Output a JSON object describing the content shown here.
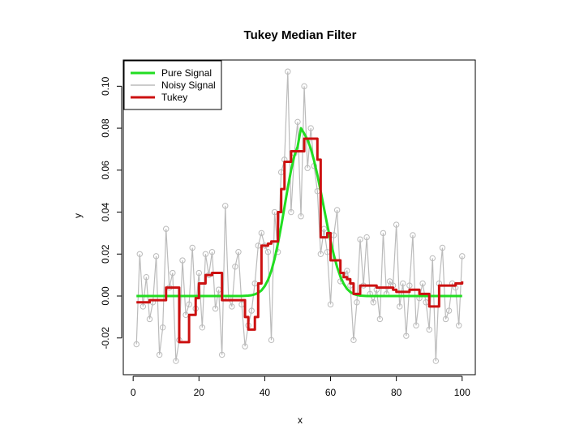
{
  "chart_data": {
    "type": "line",
    "title": "Tukey Median Filter",
    "xlabel": "x",
    "ylabel": "y",
    "xlim": [
      -3,
      104
    ],
    "ylim": [
      -0.0375,
      0.1125
    ],
    "x_ticks": [
      0,
      20,
      40,
      60,
      80,
      100
    ],
    "x_tick_labels": [
      "0",
      "20",
      "40",
      "60",
      "80",
      "100"
    ],
    "y_ticks": [
      -0.02,
      0.0,
      0.02,
      0.04,
      0.06,
      0.08,
      0.1
    ],
    "y_tick_labels": [
      "-0.02",
      "0.00",
      "0.02",
      "0.04",
      "0.06",
      "0.08",
      "0.10"
    ],
    "grid": false,
    "legend_position": "top-left",
    "series": [
      {
        "name": "Pure Signal",
        "color": "#22dd22",
        "style": "line",
        "x": [
          1,
          2,
          3,
          4,
          5,
          6,
          7,
          8,
          9,
          10,
          11,
          12,
          13,
          14,
          15,
          16,
          17,
          18,
          19,
          20,
          21,
          22,
          23,
          24,
          25,
          26,
          27,
          28,
          29,
          30,
          31,
          32,
          33,
          34,
          35,
          36,
          37,
          38,
          39,
          40,
          41,
          42,
          43,
          44,
          45,
          46,
          47,
          48,
          49,
          50,
          51,
          52,
          53,
          54,
          55,
          56,
          57,
          58,
          59,
          60,
          61,
          62,
          63,
          64,
          65,
          66,
          67,
          68,
          69,
          70,
          71,
          72,
          73,
          74,
          75,
          76,
          77,
          78,
          79,
          80,
          81,
          82,
          83,
          84,
          85,
          86,
          87,
          88,
          89,
          90,
          91,
          92,
          93,
          94,
          95,
          96,
          97,
          98,
          99,
          100
        ],
        "y": [
          0,
          0,
          0,
          0,
          0,
          0,
          0,
          0,
          0,
          0,
          0,
          0,
          0,
          0,
          0,
          0,
          0,
          0,
          0,
          0,
          0,
          0,
          0,
          0,
          0,
          0,
          0,
          0,
          0,
          0,
          0,
          0,
          0,
          0.0001,
          0.0002,
          0.0004,
          0.0008,
          0.0015,
          0.0027,
          0.0047,
          0.0077,
          0.012,
          0.0178,
          0.025,
          0.0333,
          0.0424,
          0.0516,
          0.06,
          0.0668,
          0.0713,
          0.08,
          0.0774,
          0.0745,
          0.0702,
          0.0645,
          0.0577,
          0.05,
          0.0419,
          0.0339,
          0.0263,
          0.0195,
          0.0138,
          0.0092,
          0.0058,
          0.0034,
          0.0019,
          0.001,
          0.0005,
          0.0002,
          0.0001,
          0,
          0,
          0,
          0,
          0,
          0,
          0,
          0,
          0,
          0,
          0,
          0,
          0,
          0,
          0,
          0,
          0,
          0,
          0,
          0,
          0,
          0,
          0,
          0,
          0,
          0,
          0,
          0,
          0,
          0
        ]
      },
      {
        "name": "Noisy Signal",
        "color": "#bbbbbb",
        "style": "line+open-circles",
        "x": [
          1,
          2,
          3,
          4,
          5,
          6,
          7,
          8,
          9,
          10,
          11,
          12,
          13,
          14,
          15,
          16,
          17,
          18,
          19,
          20,
          21,
          22,
          23,
          24,
          25,
          26,
          27,
          28,
          29,
          30,
          31,
          32,
          33,
          34,
          35,
          36,
          37,
          38,
          39,
          40,
          41,
          42,
          43,
          44,
          45,
          46,
          47,
          48,
          49,
          50,
          51,
          52,
          53,
          54,
          55,
          56,
          57,
          58,
          59,
          60,
          61,
          62,
          63,
          64,
          65,
          66,
          67,
          68,
          69,
          70,
          71,
          72,
          73,
          74,
          75,
          76,
          77,
          78,
          79,
          80,
          81,
          82,
          83,
          84,
          85,
          86,
          87,
          88,
          89,
          90,
          91,
          92,
          93,
          94,
          95,
          96,
          97,
          98,
          99,
          100
        ],
        "y": [
          -0.023,
          0.02,
          -0.005,
          0.009,
          -0.011,
          -0.003,
          0.019,
          -0.028,
          -0.015,
          0.032,
          0.004,
          0.011,
          -0.031,
          -0.021,
          0.017,
          -0.009,
          -0.004,
          0.023,
          -0.006,
          0.011,
          -0.015,
          0.02,
          0.01,
          0.021,
          -0.006,
          0.003,
          -0.028,
          0.043,
          -0.001,
          -0.005,
          0.014,
          0.021,
          -0.004,
          -0.024,
          -0.014,
          -0.007,
          0.006,
          0.024,
          0.03,
          0.024,
          0.021,
          -0.021,
          0.04,
          0.021,
          0.059,
          0.065,
          0.107,
          0.04,
          0.068,
          0.083,
          0.038,
          0.1,
          0.061,
          0.08,
          0.062,
          0.05,
          0.02,
          0.032,
          0.021,
          -0.004,
          0.029,
          0.041,
          0.007,
          0.01,
          0.012,
          0.005,
          -0.021,
          -0.003,
          0.027,
          0.005,
          0.028,
          0.001,
          -0.003,
          0.003,
          -0.011,
          0.03,
          0.001,
          0.007,
          0.005,
          0.034,
          -0.005,
          0.006,
          -0.019,
          0.005,
          0.029,
          -0.014,
          -0.001,
          0.006,
          -0.003,
          -0.016,
          0.018,
          -0.031,
          0.006,
          0.023,
          -0.011,
          -0.007,
          0.006,
          0.004,
          -0.014,
          0.019
        ]
      },
      {
        "name": "Tukey",
        "color": "#cc1111",
        "style": "step",
        "x": [
          1,
          2,
          3,
          4,
          5,
          6,
          7,
          8,
          9,
          10,
          11,
          12,
          13,
          14,
          15,
          16,
          17,
          18,
          19,
          20,
          21,
          22,
          23,
          24,
          25,
          26,
          27,
          28,
          29,
          30,
          31,
          32,
          33,
          34,
          35,
          36,
          37,
          38,
          39,
          40,
          41,
          42,
          43,
          44,
          45,
          46,
          47,
          48,
          49,
          50,
          51,
          52,
          53,
          54,
          55,
          56,
          57,
          58,
          59,
          60,
          61,
          62,
          63,
          64,
          65,
          66,
          67,
          68,
          69,
          70,
          71,
          72,
          73,
          74,
          75,
          76,
          77,
          78,
          79,
          80,
          81,
          82,
          83,
          84,
          85,
          86,
          87,
          88,
          89,
          90,
          91,
          92,
          93,
          94,
          95,
          96,
          97,
          98,
          99,
          100
        ],
        "y": [
          -0.003,
          -0.003,
          -0.003,
          -0.003,
          -0.002,
          -0.002,
          -0.002,
          -0.002,
          -0.002,
          0.004,
          0.004,
          0.004,
          0.004,
          -0.022,
          -0.022,
          -0.022,
          -0.009,
          -0.009,
          -0.001,
          0.006,
          0.006,
          0.01,
          0.01,
          0.011,
          0.011,
          0.011,
          -0.002,
          -0.002,
          -0.002,
          -0.002,
          -0.002,
          -0.002,
          -0.002,
          -0.01,
          -0.016,
          -0.016,
          -0.01,
          0.006,
          0.024,
          0.024,
          0.025,
          0.026,
          0.026,
          0.04,
          0.051,
          0.064,
          0.064,
          0.069,
          0.069,
          0.069,
          0.069,
          0.075,
          0.075,
          0.075,
          0.075,
          0.065,
          0.028,
          0.028,
          0.03,
          0.017,
          0.017,
          0.017,
          0.011,
          0.009,
          0.008,
          0.006,
          0.001,
          0.001,
          0.005,
          0.005,
          0.005,
          0.005,
          0.005,
          0.004,
          0.004,
          0.004,
          0.004,
          0.004,
          0.003,
          0.002,
          0.002,
          0.002,
          0.002,
          0.003,
          0.003,
          0.003,
          0.001,
          0.001,
          0.001,
          -0.005,
          -0.005,
          -0.005,
          0.005,
          0.005,
          0.005,
          0.005,
          0.005,
          0.006,
          0.006,
          0.007
        ]
      }
    ]
  }
}
